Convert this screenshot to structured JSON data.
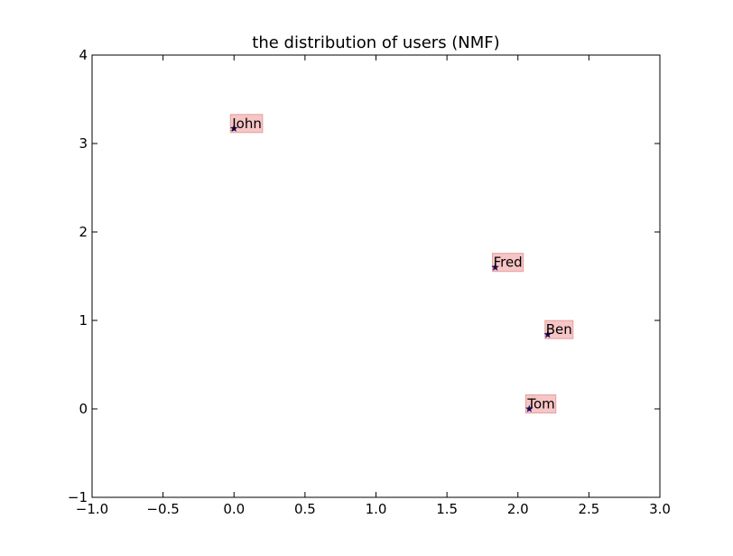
{
  "chart_data": {
    "type": "scatter",
    "title": "the distribution of users (NMF)",
    "xlabel": "",
    "ylabel": "",
    "xlim": [
      -1.0,
      3.0
    ],
    "ylim": [
      -1,
      4
    ],
    "x_ticks": [
      -1.0,
      -0.5,
      0.0,
      0.5,
      1.0,
      1.5,
      2.0,
      2.5,
      3.0
    ],
    "x_tick_labels": [
      "−1.0",
      "−0.5",
      "0.0",
      "0.5",
      "1.0",
      "1.5",
      "2.0",
      "2.5",
      "3.0"
    ],
    "y_ticks": [
      -1,
      0,
      1,
      2,
      3,
      4
    ],
    "y_tick_labels": [
      "−1",
      "0",
      "1",
      "2",
      "3",
      "4"
    ],
    "grid": false,
    "marker": "star",
    "marker_color": "#1a0a5c",
    "label_box_color": "#f5b7b7",
    "points": [
      {
        "label": "John",
        "x": 0.0,
        "y": 3.17
      },
      {
        "label": "Fred",
        "x": 1.84,
        "y": 1.6
      },
      {
        "label": "Ben",
        "x": 2.21,
        "y": 0.84
      },
      {
        "label": "Tom",
        "x": 2.08,
        "y": 0.0
      }
    ]
  }
}
